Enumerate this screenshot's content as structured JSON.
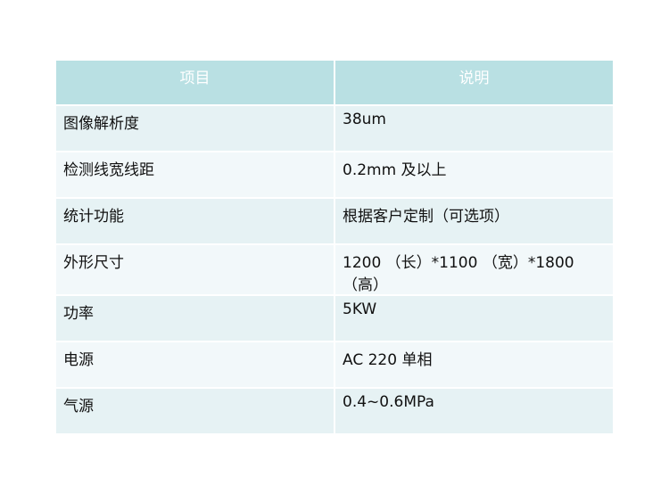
{
  "table": {
    "headers": [
      "项目",
      "说明"
    ],
    "rows": [
      [
        "图像解析度",
        "38um"
      ],
      [
        "检测线宽线距",
        "0.2mm 及以上"
      ],
      [
        "统计功能",
        "根据客户定制（可选项）"
      ],
      [
        "外形尺寸",
        "1200 （长）*1100 （宽）*1800 （高）"
      ],
      [
        "功率",
        "5KW"
      ],
      [
        "电源",
        "AC 220  单相"
      ],
      [
        "气源",
        "0.4~0.6MPa"
      ]
    ]
  }
}
